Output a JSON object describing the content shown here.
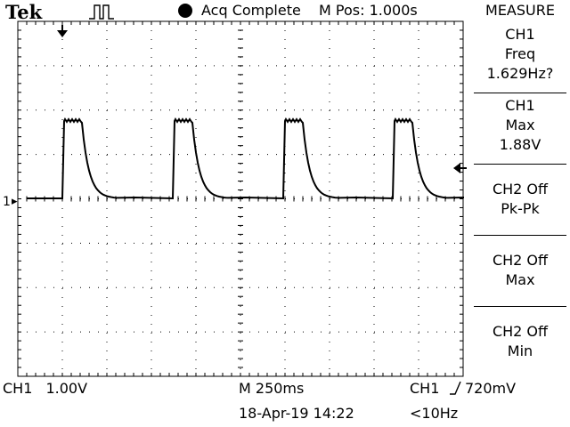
{
  "header": {
    "brand": "Tek",
    "acquisition_status": "Acq Complete",
    "main_position": "M Pos: 1.000s"
  },
  "measure_menu": {
    "title": "MEASURE",
    "items": [
      {
        "source": "CH1",
        "type": "Freq",
        "value": "1.629Hz?"
      },
      {
        "source": "CH1",
        "type": "Max",
        "value": "1.88V"
      },
      {
        "source": "CH2 Off",
        "type": "Pk-Pk"
      },
      {
        "source": "CH2 Off",
        "type": "Max"
      },
      {
        "source": "CH2 Off",
        "type": "Min"
      }
    ]
  },
  "channel": {
    "ch1_label": "CH1",
    "ch1_scale": "1.00V",
    "ground_marker": "1"
  },
  "timebase": {
    "main_scale": "M 250ms"
  },
  "trigger": {
    "source": "CH1",
    "level": "720mV",
    "frequency_indicator": "<10Hz"
  },
  "datetime": "18-Apr-19 14:22",
  "waveform": {
    "pulse_count": 4,
    "pulse_peak_volts": 1.88,
    "baseline_volts": 0.0
  },
  "colors": {
    "background": "#ffffff",
    "trace": "#000000",
    "graticule": "#000000"
  },
  "icons": {
    "trigger_position": "down-arrow-icon",
    "trigger_level": "left-arrow-icon",
    "trigger_slope": "rising-edge-icon",
    "acquisition_mode": "pulse-train-icon"
  }
}
